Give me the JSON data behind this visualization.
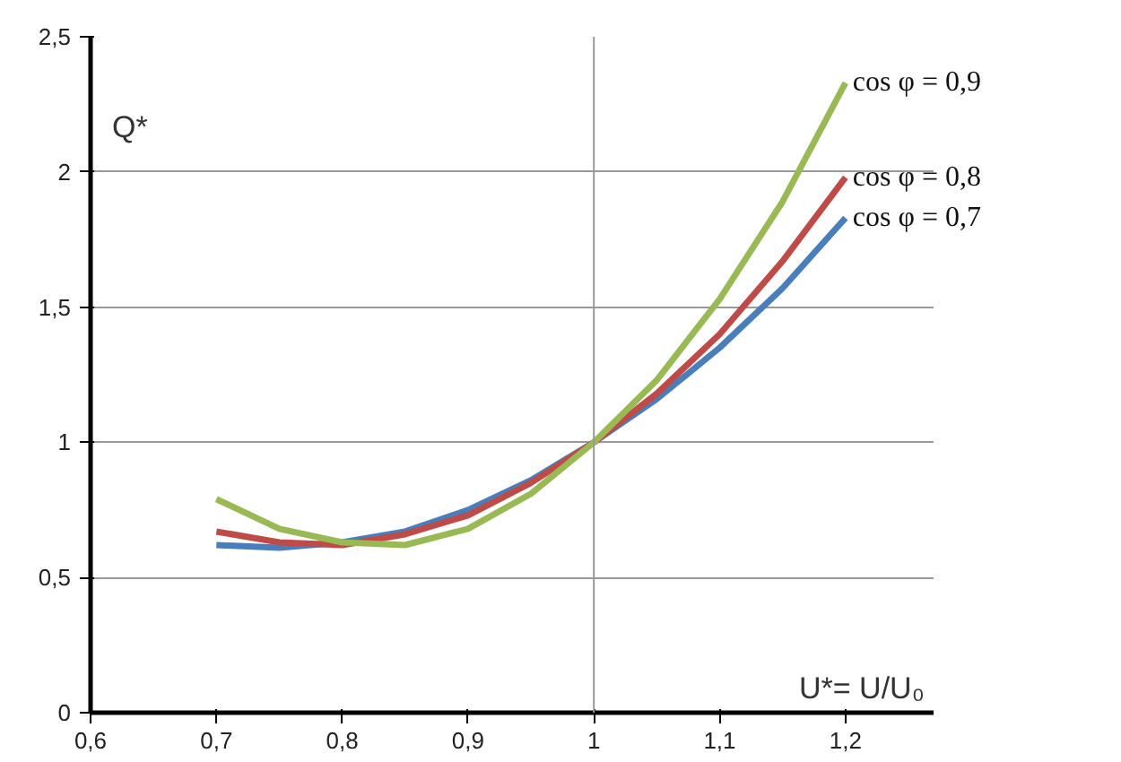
{
  "chart_data": {
    "type": "line",
    "xlabel": "U*= U/U₀",
    "ylabel": "Q*",
    "x": [
      0.7,
      0.75,
      0.8,
      0.85,
      0.9,
      0.95,
      1.0,
      1.05,
      1.1,
      1.15,
      1.2
    ],
    "series": [
      {
        "name": "cos φ = 0,7",
        "color": "#4a7ebb",
        "values": [
          0.62,
          0.61,
          0.63,
          0.67,
          0.75,
          0.86,
          1.0,
          1.16,
          1.35,
          1.57,
          1.83
        ]
      },
      {
        "name": "cos φ = 0,8",
        "color": "#be4b48",
        "values": [
          0.67,
          0.63,
          0.62,
          0.66,
          0.73,
          0.85,
          1.0,
          1.18,
          1.4,
          1.67,
          1.98
        ]
      },
      {
        "name": "cos φ = 0,9",
        "color": "#98b954",
        "values": [
          0.79,
          0.68,
          0.63,
          0.62,
          0.68,
          0.81,
          1.0,
          1.23,
          1.53,
          1.89,
          2.33
        ]
      }
    ],
    "xlim": [
      0.6,
      1.27
    ],
    "ylim": [
      0,
      2.5
    ],
    "xticks": [
      {
        "value": 0.6,
        "label": "0,6"
      },
      {
        "value": 0.7,
        "label": "0,7"
      },
      {
        "value": 0.8,
        "label": "0,8"
      },
      {
        "value": 0.9,
        "label": "0,9"
      },
      1,
      {
        "value": 1.1,
        "label": "1,1"
      },
      {
        "value": 1.2,
        "label": "1,2"
      }
    ],
    "yticks": [
      0,
      {
        "value": 0.5,
        "label": "0,5"
      },
      1,
      {
        "value": 1.5,
        "label": "1,5"
      },
      2,
      {
        "value": 2.5,
        "label": "2,5"
      }
    ],
    "grid": "y",
    "legend": false,
    "marker": "none",
    "line_style": "solid",
    "ref_lines": [
      {
        "axis": "x",
        "value": 1,
        "color": "#999999"
      }
    ]
  }
}
